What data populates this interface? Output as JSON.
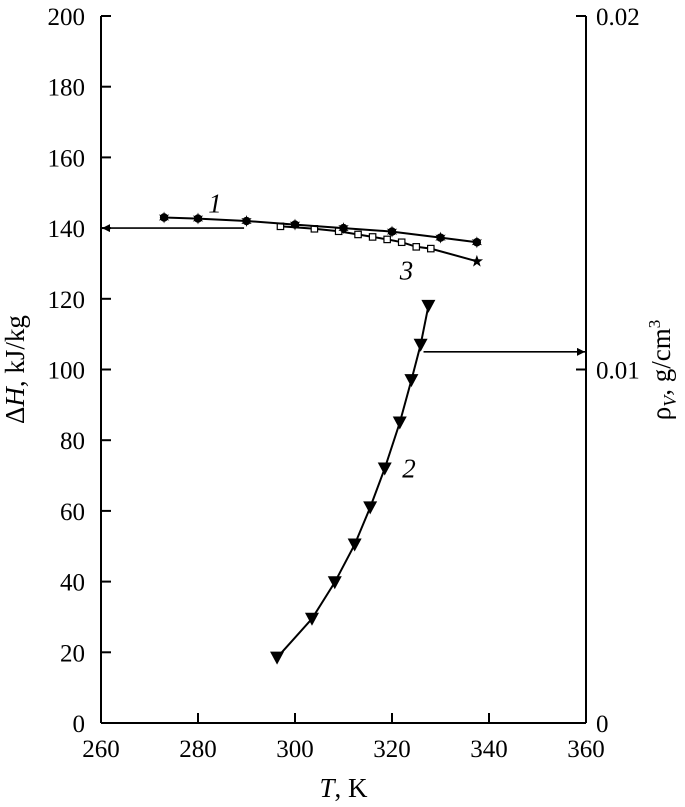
{
  "chart_data": {
    "type": "scatter",
    "x_axis": {
      "label_italic": "T",
      "label_rest": ", K",
      "range": [
        260,
        360
      ],
      "ticks": [
        260,
        280,
        300,
        320,
        340,
        360
      ]
    },
    "y_axis_left": {
      "label_prefix": "Δ",
      "label_italic": "H",
      "label_rest": ", kJ/kg",
      "range": [
        0,
        200
      ],
      "ticks": [
        0,
        20,
        40,
        60,
        80,
        100,
        120,
        140,
        160,
        180,
        200
      ]
    },
    "y_axis_right": {
      "label_symbol": "ρ",
      "label_sub": "V",
      "label_rest": ", g/cm",
      "label_sup": "3",
      "range": [
        0,
        0.02
      ],
      "ticks": [
        0,
        0.01,
        0.02
      ],
      "tick_labels": [
        "0",
        "0.01",
        "0.02"
      ]
    },
    "grid": false,
    "series": [
      {
        "name": "1",
        "axis": "left",
        "marker": "filled-circle-star",
        "points": [
          [
            273,
            143
          ],
          [
            280,
            142.7
          ],
          [
            290,
            142
          ],
          [
            300,
            141
          ],
          [
            310,
            140
          ],
          [
            320,
            139
          ],
          [
            330,
            137.3
          ],
          [
            337.5,
            136
          ]
        ]
      },
      {
        "name": "2",
        "axis": "right",
        "marker": "filled-triangle-down",
        "points": [
          [
            296.3,
            0.00185
          ],
          [
            303.5,
            0.00295
          ],
          [
            308.2,
            0.00398
          ],
          [
            312.3,
            0.00505
          ],
          [
            315.5,
            0.0061
          ],
          [
            318.5,
            0.0072
          ],
          [
            321.6,
            0.0085
          ],
          [
            324,
            0.0097
          ],
          [
            325.9,
            0.0107
          ],
          [
            327.5,
            0.0118
          ]
        ]
      },
      {
        "name": "3",
        "axis": "left",
        "marker": "open-square",
        "end_marker": "star",
        "points": [
          [
            297,
            140.5
          ],
          [
            304,
            139.8
          ],
          [
            309,
            139.1
          ],
          [
            313,
            138.2
          ],
          [
            316,
            137.5
          ],
          [
            319,
            136.8
          ],
          [
            322,
            136
          ],
          [
            325,
            134.7
          ],
          [
            328,
            134.2
          ],
          [
            337.5,
            130.6
          ]
        ]
      }
    ],
    "annotations": [
      {
        "type": "arrow",
        "series": "1",
        "points_to": "left-axis",
        "from": [
          289.5,
          140
        ],
        "to": [
          260,
          140
        ],
        "axis": "left"
      },
      {
        "type": "arrow",
        "series": "2",
        "points_to": "right-axis",
        "from": [
          326.5,
          0.0105
        ],
        "to": [
          360,
          0.0105
        ],
        "axis": "right"
      }
    ],
    "curve_labels": [
      {
        "text": "1",
        "x": 283.5,
        "y": 147,
        "axis": "left"
      },
      {
        "text": "2",
        "x": 323.5,
        "y": 0.0072,
        "axis": "right"
      },
      {
        "text": "3",
        "x": 323,
        "y": 0.0128,
        "axis": "right"
      }
    ]
  }
}
